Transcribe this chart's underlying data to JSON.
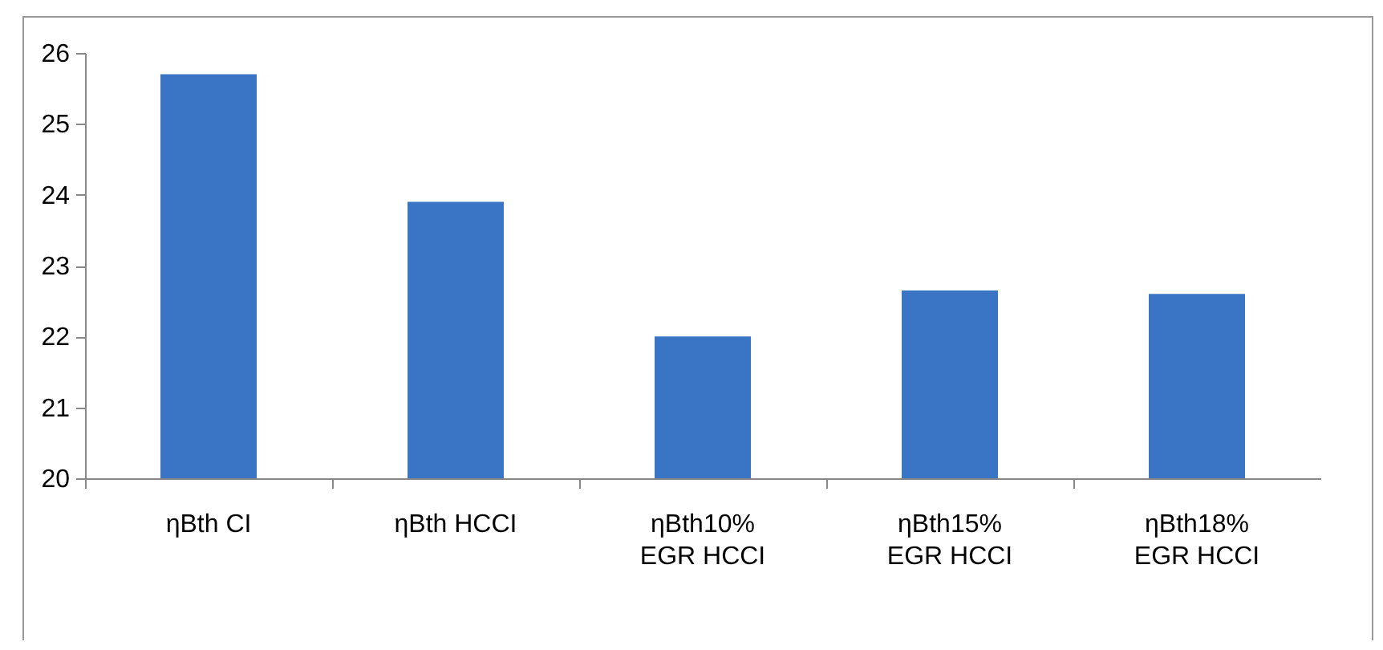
{
  "chart_data": {
    "type": "bar",
    "categories": [
      "ηBth CI",
      "ηBth HCCI",
      "ηBth10%\nEGR HCCI",
      "ηBth15%\nEGR HCCI",
      "ηBth18%\nEGR HCCI"
    ],
    "values": [
      25.7,
      23.9,
      22.0,
      22.65,
      22.6
    ],
    "color": "#3a74c4",
    "ylim": [
      20,
      26
    ],
    "yticks": [
      20,
      21,
      22,
      23,
      24,
      25,
      26
    ],
    "grid": false
  }
}
